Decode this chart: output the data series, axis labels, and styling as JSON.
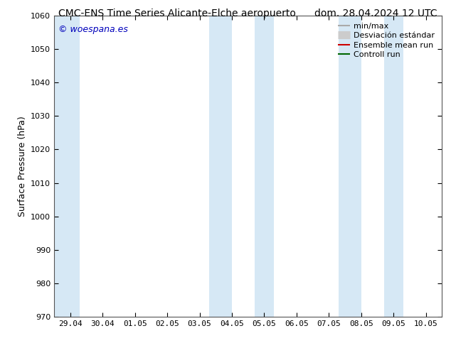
{
  "title_left": "CMC-ENS Time Series Alicante-Elche aeropuerto",
  "title_right": "dom. 28.04.2024 12 UTC",
  "ylabel": "Surface Pressure (hPa)",
  "ylim": [
    970,
    1060
  ],
  "yticks": [
    970,
    980,
    990,
    1000,
    1010,
    1020,
    1030,
    1040,
    1050,
    1060
  ],
  "x_labels": [
    "29.04",
    "30.04",
    "01.05",
    "02.05",
    "03.05",
    "04.05",
    "05.05",
    "06.05",
    "07.05",
    "08.05",
    "09.05",
    "10.05"
  ],
  "x_values": [
    0,
    1,
    2,
    3,
    4,
    5,
    6,
    7,
    8,
    9,
    10,
    11
  ],
  "xlim": [
    -0.5,
    11.5
  ],
  "shaded_bands": [
    {
      "x_start": -0.5,
      "x_end": 0.3
    },
    {
      "x_start": 4.3,
      "x_end": 5.0
    },
    {
      "x_start": 5.7,
      "x_end": 6.3
    },
    {
      "x_start": 8.3,
      "x_end": 9.0
    },
    {
      "x_start": 9.7,
      "x_end": 10.3
    }
  ],
  "shaded_color": "#d6e8f5",
  "watermark": "© woespana.es",
  "watermark_color": "#0000bb",
  "bg_color": "#ffffff",
  "legend_items": [
    {
      "label": "min/max",
      "color": "#aaaaaa",
      "lw": 1.5,
      "ls": "-"
    },
    {
      "label": "Desviación estándar",
      "color": "#cccccc",
      "lw": 8,
      "ls": "-"
    },
    {
      "label": "Ensemble mean run",
      "color": "#cc0000",
      "lw": 1.5,
      "ls": "-"
    },
    {
      "label": "Controll run",
      "color": "#006600",
      "lw": 1.5,
      "ls": "-"
    }
  ],
  "title_fontsize": 10,
  "axis_fontsize": 9,
  "tick_fontsize": 8,
  "legend_fontsize": 8
}
